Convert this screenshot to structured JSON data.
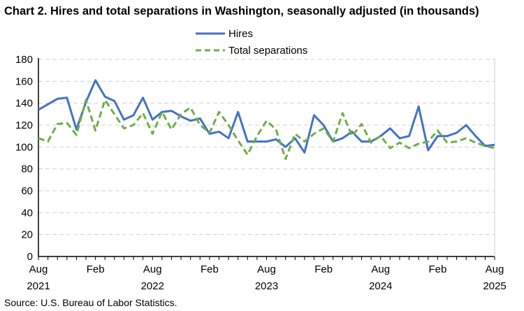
{
  "title": "Chart 2. Hires and total separations in Washington, seasonally adjusted (in thousands)",
  "source": "Source: U.S. Bureau of Labor Statistics.",
  "chart_data": {
    "type": "line",
    "title": "Chart 2. Hires and total separations in Washington, seasonally adjusted (in thousands)",
    "xlabel": "",
    "ylabel": "",
    "ylim": [
      0,
      180
    ],
    "yticks": [
      0,
      20,
      40,
      60,
      80,
      100,
      120,
      140,
      160,
      180
    ],
    "grid": true,
    "legend": "top-center",
    "x_range": [
      "Aug 2021",
      "Aug 2025"
    ],
    "xtick_labels": [
      {
        "month": "Aug",
        "year": "2021",
        "index": 0
      },
      {
        "month": "Feb",
        "year": "",
        "index": 6
      },
      {
        "month": "Aug",
        "year": "2022",
        "index": 12
      },
      {
        "month": "Feb",
        "year": "",
        "index": 18
      },
      {
        "month": "Aug",
        "year": "2023",
        "index": 24
      },
      {
        "month": "Feb",
        "year": "",
        "index": 30
      },
      {
        "month": "Aug",
        "year": "2024",
        "index": 36
      },
      {
        "month": "Feb",
        "year": "",
        "index": 42
      },
      {
        "month": "Aug",
        "year": "2025",
        "index": 48
      }
    ],
    "series": [
      {
        "name": "Hires",
        "color": "#4472C4",
        "style": "solid",
        "values": [
          134,
          139,
          144,
          145,
          116,
          141,
          161,
          146,
          142,
          125,
          129,
          145,
          125,
          132,
          133,
          128,
          124,
          126,
          112,
          114,
          108,
          132,
          105,
          105,
          105,
          107,
          100,
          108,
          95,
          129,
          120,
          105,
          108,
          114,
          105,
          105,
          110,
          117,
          108,
          110,
          137,
          97,
          110,
          110,
          113,
          120,
          110,
          101,
          102
        ]
      },
      {
        "name": "Total separations",
        "color": "#70AD47",
        "style": "dashed",
        "values": [
          108,
          105,
          121,
          122,
          111,
          143,
          115,
          143,
          130,
          117,
          120,
          131,
          112,
          132,
          116,
          130,
          136,
          120,
          113,
          132,
          120,
          106,
          93,
          110,
          124,
          116,
          89,
          112,
          105,
          112,
          117,
          105,
          131,
          110,
          121,
          104,
          110,
          99,
          104,
          99,
          103,
          105,
          115,
          104,
          105,
          108,
          104,
          101,
          99
        ]
      }
    ]
  }
}
